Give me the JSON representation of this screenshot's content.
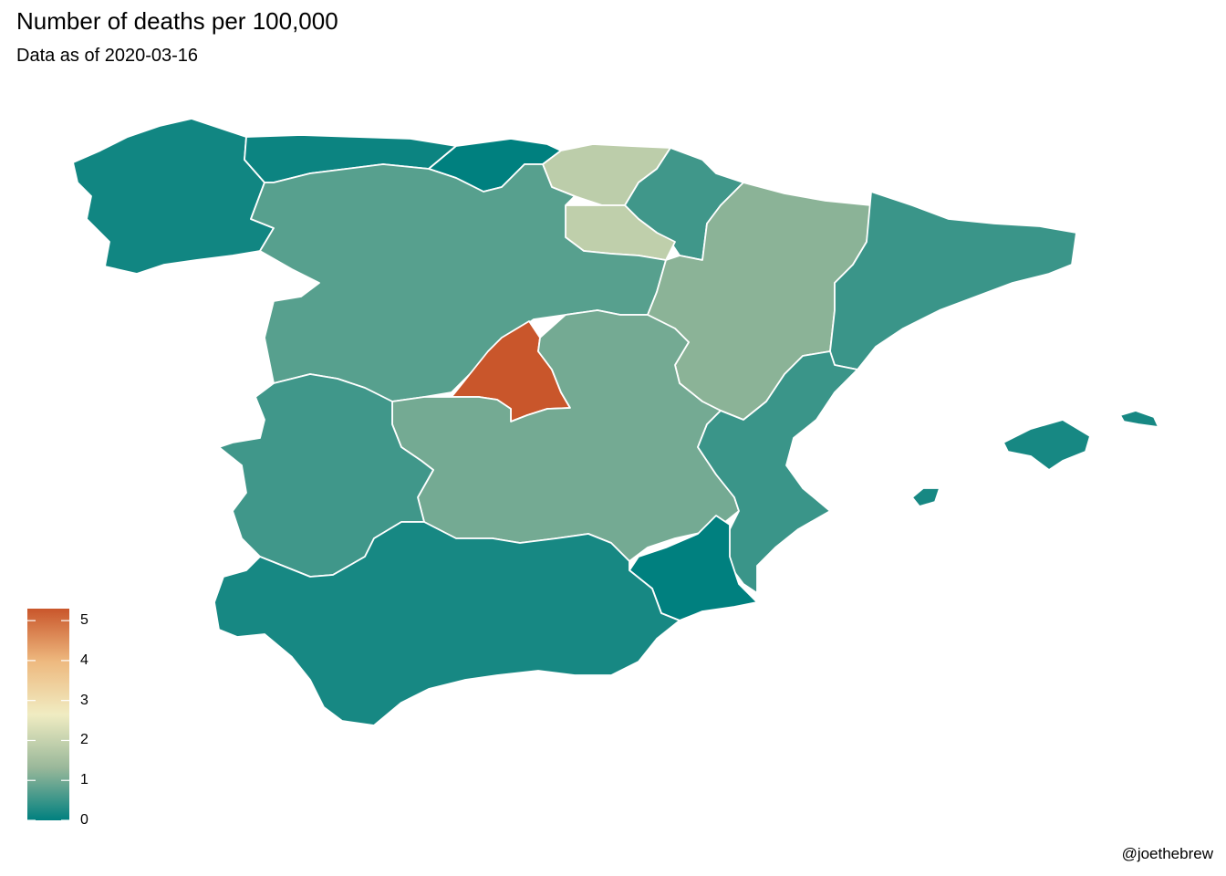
{
  "title": "Number of deaths per 100,000",
  "subtitle": "Data as of 2020-03-16",
  "caption": "@joethebrew",
  "legend": {
    "min": 0,
    "max": 5.3,
    "ticks": [
      "0",
      "1",
      "2",
      "3",
      "4",
      "5"
    ],
    "colors": [
      "#00807f",
      "#9ab89a",
      "#f0ecc2",
      "#eeb97f",
      "#c9562b"
    ]
  },
  "colors": {
    "border": "#ffffff",
    "background": "#ffffff"
  },
  "regions": [
    {
      "id": "galicia",
      "value": 0.15
    },
    {
      "id": "asturias",
      "value": 0.1
    },
    {
      "id": "cantabria",
      "value": 0.0
    },
    {
      "id": "pais-vasco",
      "value": 1.85
    },
    {
      "id": "navarra",
      "value": 0.55
    },
    {
      "id": "la-rioja",
      "value": 1.9
    },
    {
      "id": "castilla-y-leon",
      "value": 0.75
    },
    {
      "id": "aragon",
      "value": 1.2
    },
    {
      "id": "cataluna",
      "value": 0.5
    },
    {
      "id": "madrid",
      "value": 5.3
    },
    {
      "id": "castilla-la-mancha",
      "value": 1.0
    },
    {
      "id": "extremadura",
      "value": 0.55
    },
    {
      "id": "comunidad-valenciana",
      "value": 0.5
    },
    {
      "id": "murcia",
      "value": 0.0
    },
    {
      "id": "andalucia",
      "value": 0.2
    },
    {
      "id": "mallorca",
      "value": 0.2
    },
    {
      "id": "menorca",
      "value": 0.2
    },
    {
      "id": "ibiza",
      "value": 0.2
    }
  ]
}
